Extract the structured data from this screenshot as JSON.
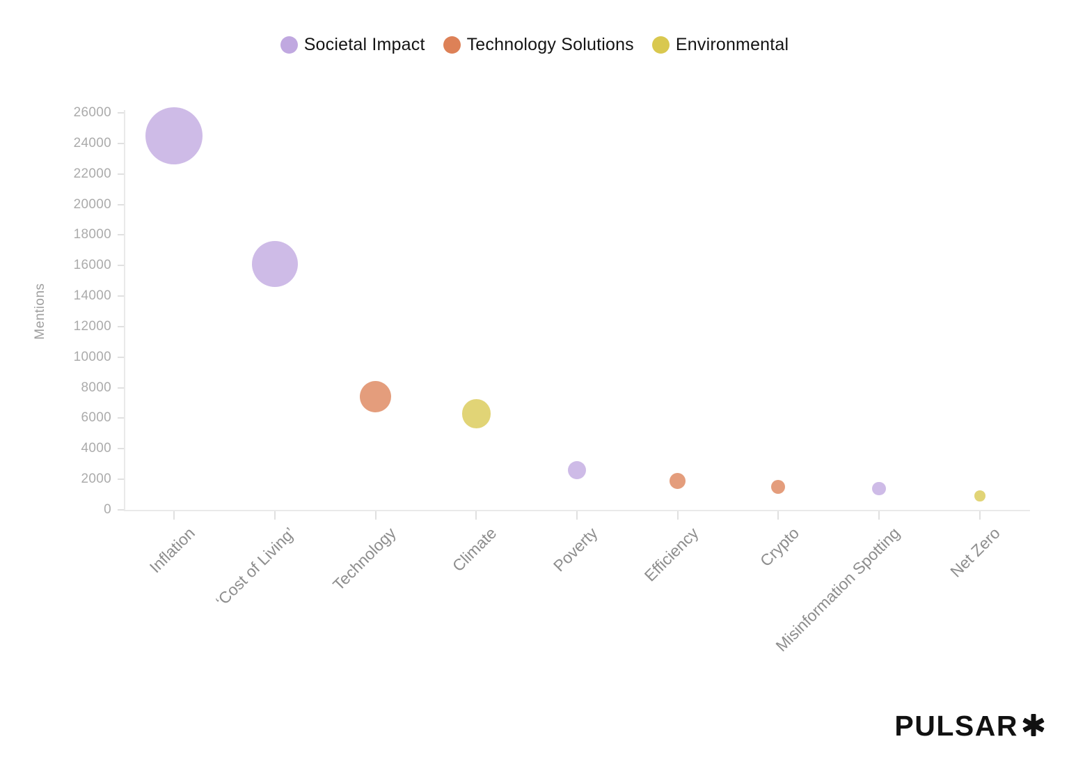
{
  "legend": {
    "items": [
      {
        "label": "Societal Impact",
        "color": "#C0A8E0"
      },
      {
        "label": "Technology Solutions",
        "color": "#DD8157"
      },
      {
        "label": "Environmental",
        "color": "#D9C84F"
      }
    ]
  },
  "chart_data": {
    "type": "scatter",
    "subtype": "bubble",
    "title": "",
    "xlabel": "",
    "ylabel": "Mentions",
    "ylim": [
      0,
      26000
    ],
    "ytick_step": 2000,
    "grid": false,
    "legend_position": "top",
    "categories": [
      "Inflation",
      "‘Cost of Living’",
      "Technology",
      "Climate",
      "Poverty",
      "Efficiency",
      "Crypto",
      "Misinformation Spotting",
      "Net Zero"
    ],
    "series": [
      {
        "name": "Societal Impact",
        "color": "#C0A8E0"
      },
      {
        "name": "Technology Solutions",
        "color": "#DD8157"
      },
      {
        "name": "Environmental",
        "color": "#D9C84F"
      }
    ],
    "points": [
      {
        "category": "Inflation",
        "series": "Societal Impact",
        "mentions": 24500
      },
      {
        "category": "‘Cost of Living’",
        "series": "Societal Impact",
        "mentions": 16100
      },
      {
        "category": "Technology",
        "series": "Technology Solutions",
        "mentions": 7400
      },
      {
        "category": "Climate",
        "series": "Environmental",
        "mentions": 6300
      },
      {
        "category": "Poverty",
        "series": "Societal Impact",
        "mentions": 2600
      },
      {
        "category": "Efficiency",
        "series": "Technology Solutions",
        "mentions": 1900
      },
      {
        "category": "Crypto",
        "series": "Technology Solutions",
        "mentions": 1500
      },
      {
        "category": "Misinformation Spotting",
        "series": "Societal Impact",
        "mentions": 1400
      },
      {
        "category": "Net Zero",
        "series": "Environmental",
        "mentions": 900
      }
    ]
  },
  "branding": {
    "logo_text": "PULSAR",
    "logo_mark": "asterisk"
  }
}
